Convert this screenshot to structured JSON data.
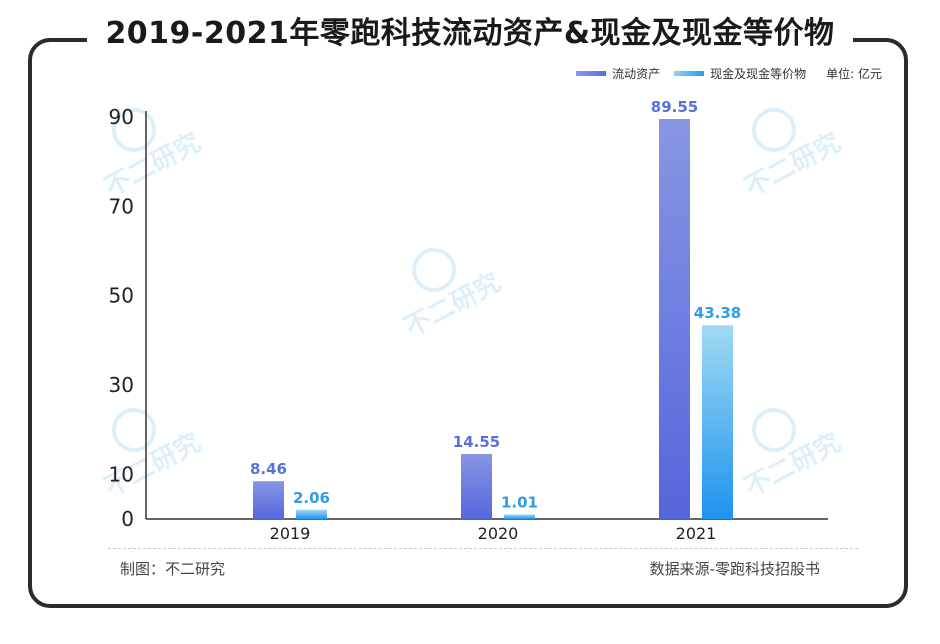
{
  "title": "2019-2021年零跑科技流动资产&现金及现金等价物",
  "legend": {
    "items": [
      {
        "label": "流动资产",
        "color": "#6b7fdf"
      },
      {
        "label": "现金及现金等价物",
        "color": "#37a8f0"
      }
    ],
    "unit": "单位: 亿元"
  },
  "footer": {
    "left": "制图：不二研究",
    "right": "数据来源-零跑科技招股书"
  },
  "watermark": "不二研究",
  "chart_data": {
    "type": "bar",
    "categories": [
      "2019",
      "2020",
      "2021"
    ],
    "series": [
      {
        "name": "流动资产",
        "values": [
          8.46,
          14.55,
          89.55
        ],
        "color": "#6b7fdf"
      },
      {
        "name": "现金及现金等价物",
        "values": [
          2.06,
          1.01,
          43.38
        ],
        "color": "#37a8f0"
      }
    ],
    "data_labels": [
      [
        "8.46",
        "14.55",
        "89.55"
      ],
      [
        "2.06",
        "1.01",
        "43.38"
      ]
    ],
    "y_ticks": [
      "0",
      "10",
      "30",
      "50",
      "70",
      "90"
    ],
    "ylim": [
      0,
      90
    ],
    "legend_position": "top-right",
    "grid": false
  }
}
